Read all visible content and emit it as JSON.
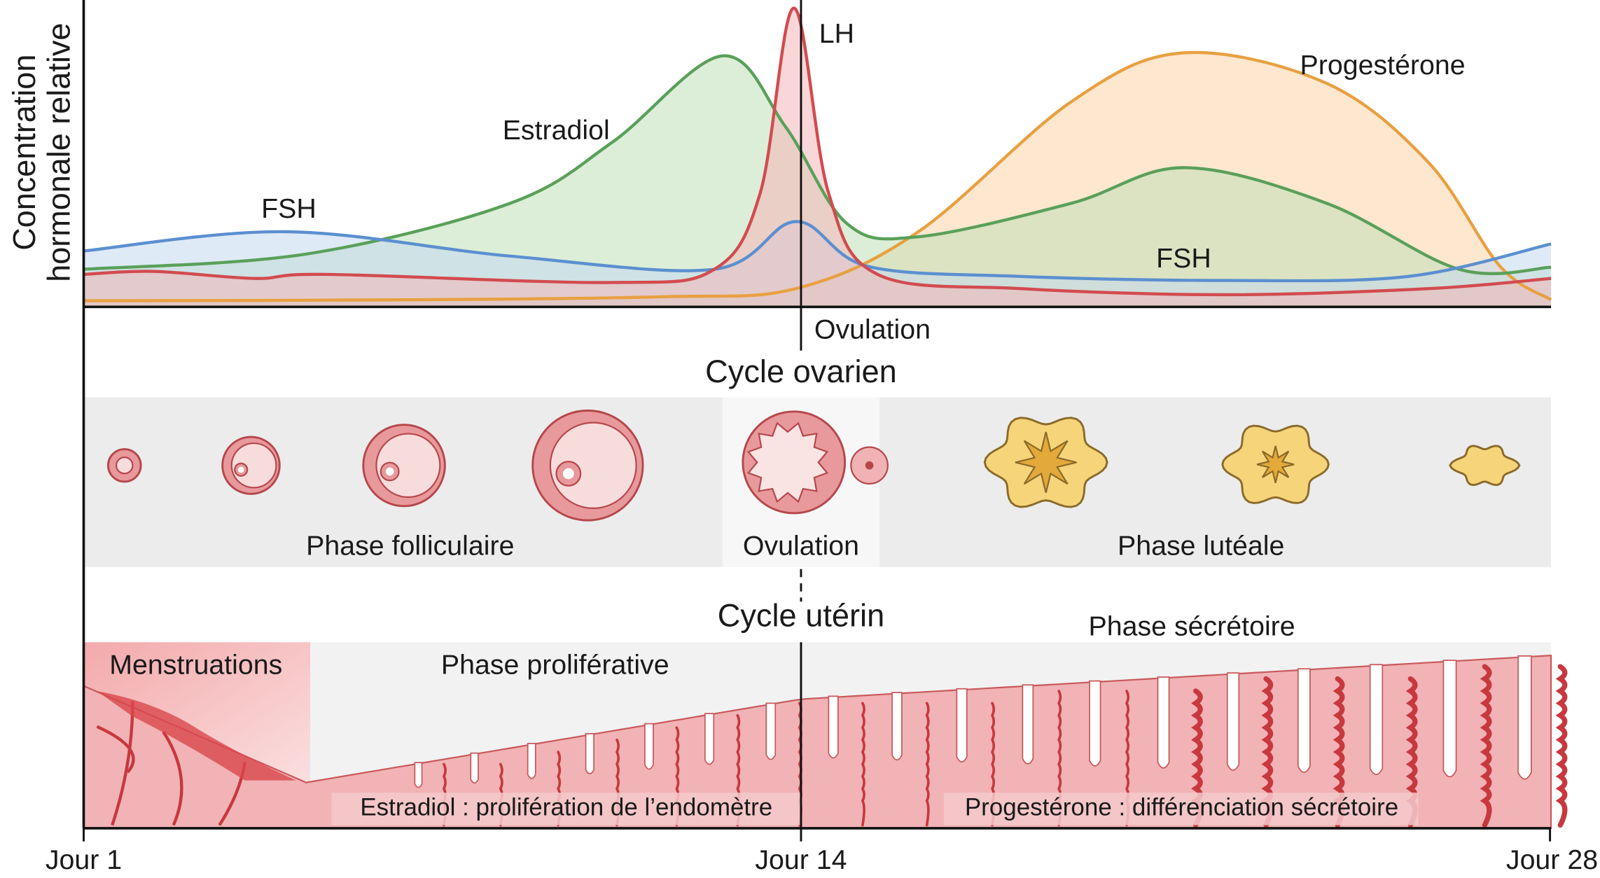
{
  "axis": {
    "y_label": [
      "Concentration",
      "hormonale relative"
    ],
    "x_labels": [
      "Jour 1",
      "Jour 14",
      "Jour 28"
    ]
  },
  "hormones": {
    "lh": "LH",
    "estradiol": "Estradiol",
    "fsh_left": "FSH",
    "progesterone": "Progestérone",
    "fsh_right": "FSH",
    "ovulation": "Ovulation"
  },
  "ovarian_cycle": {
    "title": "Cycle ovarien",
    "phases": [
      "Phase folliculaire",
      "Ovulation",
      "Phase lutéale"
    ]
  },
  "uterine_cycle": {
    "title": "Cycle utérin",
    "phases": [
      "Menstruations",
      "Phase proliférative",
      "Phase sécrétoire"
    ],
    "notes": [
      "Estradiol : prolifération de l’endomètre",
      "Progestérone : différenciation sécrétoire"
    ]
  }
}
